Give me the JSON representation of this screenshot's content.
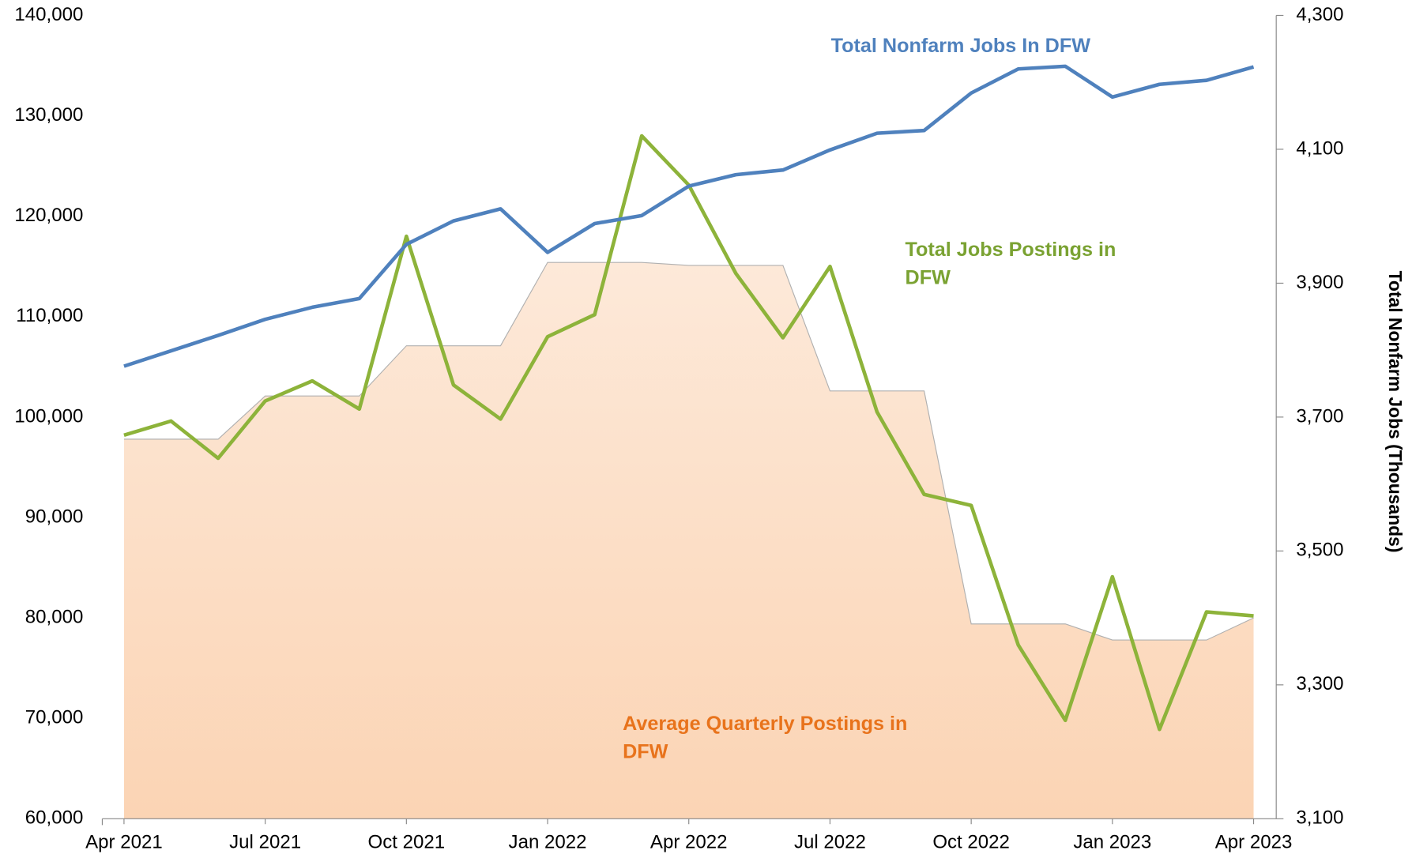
{
  "chart_data": {
    "type": "line",
    "categories": [
      "Apr 2021",
      null,
      null,
      "Jul 2021",
      null,
      null,
      "Oct 2021",
      null,
      null,
      "Jan 2022",
      null,
      null,
      "Apr 2022",
      null,
      null,
      "Jul 2022",
      null,
      null,
      "Oct 2022",
      null,
      null,
      "Jan 2023",
      null,
      null,
      "Apr 2023"
    ],
    "series": [
      {
        "kind": "area",
        "color": "#fbd9bc",
        "values": [
          97800,
          97800,
          97800,
          102100,
          102100,
          102100,
          107100,
          107100,
          107100,
          115400,
          115400,
          115400,
          115100,
          115100,
          115100,
          102600,
          102600,
          102600,
          79400,
          79400,
          79400,
          77800,
          77800,
          77800,
          80000
        ]
      },
      {
        "kind": "line",
        "color": "#8db33a",
        "values": [
          98200,
          99600,
          95900,
          101600,
          103600,
          100800,
          118000,
          103200,
          99800,
          108000,
          110200,
          128000,
          123100,
          114300,
          107900,
          115000,
          100500,
          92300,
          91200,
          77300,
          69800,
          84100,
          68900,
          80600,
          80200
        ]
      },
      {
        "kind": "line",
        "color": "#4f81bd",
        "axis": "y2",
        "values": [
          3776,
          3799,
          3822,
          3846,
          3864,
          3877,
          3958,
          3993,
          4011,
          3946,
          3989,
          4001,
          4045,
          4062,
          4069,
          4099,
          4124,
          4128,
          4184,
          4220,
          4224,
          4178,
          4197,
          4203,
          4223
        ]
      }
    ],
    "ylim": [
      60000,
      140000
    ],
    "yticks": [
      {
        "value": 60000,
        "label": "60,000"
      },
      {
        "value": 70000,
        "label": "70,000"
      },
      {
        "value": 80000,
        "label": "80,000"
      },
      {
        "value": 90000,
        "label": "90,000"
      },
      {
        "value": 100000,
        "label": "100,000"
      },
      {
        "value": 110000,
        "label": "110,000"
      },
      {
        "value": 120000,
        "label": "120,000"
      },
      {
        "value": 130000,
        "label": "130,000"
      },
      {
        "value": 140000,
        "label": "140,000"
      }
    ],
    "y2lim": [
      3100,
      4300
    ],
    "y2ticks": [
      {
        "value": 3100,
        "label": "3,100"
      },
      {
        "value": 3300,
        "label": "3,300"
      },
      {
        "value": 3500,
        "label": "3,500"
      },
      {
        "value": 3700,
        "label": "3,700"
      },
      {
        "value": 3900,
        "label": "3,900"
      },
      {
        "value": 4100,
        "label": "4,100"
      },
      {
        "value": 4300,
        "label": "4,300"
      }
    ],
    "y2label": "Total Nonfarm Jobs (Thousands)",
    "annotations": [
      {
        "lines": [
          "Total Nonfarm Jobs In DFW"
        ],
        "color": "#4f81bd"
      },
      {
        "lines": [
          "Total Jobs Postings in",
          "DFW"
        ],
        "color": "#7aa232"
      },
      {
        "lines": [
          "Average Quarterly Postings in",
          "DFW"
        ],
        "color": "#e8731c"
      }
    ]
  }
}
